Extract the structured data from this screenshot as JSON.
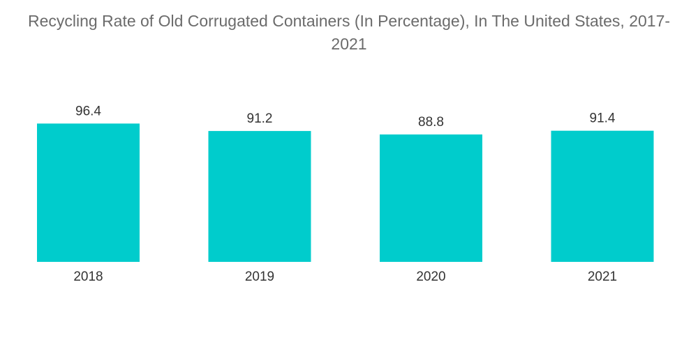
{
  "chart_data": {
    "type": "bar",
    "title_line1": "Recycling Rate of Old Corrugated Containers (In Percentage), In The United States, 2017-",
    "title_line2": "2021",
    "categories": [
      "2018",
      "2019",
      "2020",
      "2021"
    ],
    "values": [
      96.4,
      91.2,
      88.8,
      91.4
    ],
    "value_labels": [
      "96.4",
      "91.2",
      "88.8",
      "91.4"
    ],
    "xlabel": "",
    "ylabel": "",
    "ylim": [
      0,
      100
    ],
    "grid": false,
    "legend": "none",
    "bar_color": "#00CCCC"
  }
}
